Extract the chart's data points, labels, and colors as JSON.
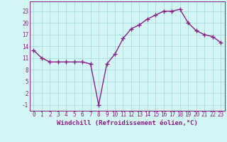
{
  "x": [
    0,
    1,
    2,
    3,
    4,
    5,
    6,
    7,
    8,
    9,
    10,
    11,
    12,
    13,
    14,
    15,
    16,
    17,
    18,
    19,
    20,
    21,
    22,
    23
  ],
  "y": [
    13,
    11,
    10,
    10,
    10,
    10,
    10,
    9.5,
    -1,
    9.5,
    12,
    16,
    18.5,
    19.5,
    21,
    22,
    23,
    23,
    23.5,
    20,
    18,
    17,
    16.5,
    15
  ],
  "line_color": "#882288",
  "marker": "+",
  "marker_size": 4,
  "line_width": 1.0,
  "bg_color": "#d4f5f5",
  "grid_color": "#aadddd",
  "xlabel": "Windchill (Refroidissement éolien,°C)",
  "xlabel_fontsize": 6.5,
  "xtick_labels": [
    "0",
    "1",
    "2",
    "3",
    "4",
    "5",
    "6",
    "7",
    "8",
    "9",
    "10",
    "11",
    "12",
    "13",
    "14",
    "15",
    "16",
    "17",
    "18",
    "19",
    "20",
    "21",
    "22",
    "23"
  ],
  "ytick_values": [
    -1,
    2,
    5,
    8,
    11,
    14,
    17,
    20,
    23
  ],
  "ylim": [
    -2.5,
    25.5
  ],
  "xlim": [
    -0.5,
    23.5
  ],
  "tick_color": "#882288",
  "tick_fontsize": 5.5,
  "xlabel_fontweight": "bold"
}
